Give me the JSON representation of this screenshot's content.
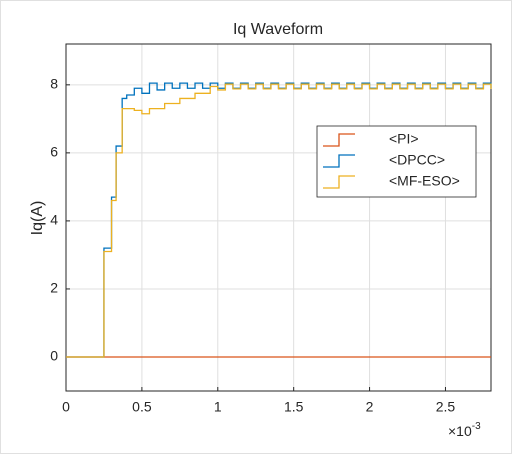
{
  "chart_data": {
    "type": "line",
    "step": true,
    "title": "Iq Waveform",
    "y_label": "Iq(A)",
    "x_multiplier": "×10",
    "x_multiplier_exp": "-3",
    "x": [
      0,
      0.2,
      0.25,
      0.3,
      0.33,
      0.37,
      0.4,
      0.45,
      0.5,
      0.55,
      0.6,
      0.65,
      0.7,
      0.75,
      0.8,
      0.85,
      0.9,
      0.95,
      1.0,
      1.05,
      1.1,
      1.15,
      1.2,
      1.25,
      1.3,
      1.35,
      1.4,
      1.45,
      1.5,
      1.55,
      1.6,
      1.65,
      1.7,
      1.75,
      1.8,
      1.85,
      1.9,
      1.95,
      2.0,
      2.05,
      2.1,
      2.15,
      2.2,
      2.25,
      2.3,
      2.35,
      2.4,
      2.45,
      2.5,
      2.55,
      2.6,
      2.65,
      2.7,
      2.75,
      2.8
    ],
    "series": [
      {
        "name": "<PI>",
        "color": "#d95319",
        "values": [
          0,
          0,
          0,
          0,
          0,
          0,
          0,
          0,
          0,
          0,
          0,
          0,
          0,
          0,
          0,
          0,
          0,
          0,
          0,
          0,
          0,
          0,
          0,
          0,
          0,
          0,
          0,
          0,
          0,
          0,
          0,
          0,
          0,
          0,
          0,
          0,
          0,
          0,
          0,
          0,
          0,
          0,
          0,
          0,
          0,
          0,
          0,
          0,
          0,
          0,
          0,
          0,
          0,
          0,
          0
        ]
      },
      {
        "name": "<DPCC>",
        "color": "#0072bd",
        "values": [
          0,
          0,
          3.2,
          4.7,
          6.2,
          7.6,
          7.7,
          7.9,
          7.75,
          8.05,
          7.85,
          8.05,
          7.9,
          8.05,
          7.9,
          8.05,
          7.9,
          8.05,
          7.9,
          8.05,
          7.9,
          8.05,
          7.9,
          8.05,
          7.9,
          8.05,
          7.9,
          8.05,
          7.9,
          8.05,
          7.9,
          8.05,
          7.9,
          8.05,
          7.9,
          8.05,
          7.9,
          8.05,
          7.9,
          8.05,
          7.9,
          8.05,
          7.9,
          8.05,
          7.9,
          8.05,
          7.9,
          8.05,
          7.9,
          8.05,
          7.9,
          8.05,
          7.9,
          8.05,
          7.9
        ]
      },
      {
        "name": "<MF-ESO>",
        "color": "#edb120",
        "values": [
          0,
          0,
          3.1,
          4.6,
          6.0,
          7.3,
          7.3,
          7.25,
          7.15,
          7.3,
          7.3,
          7.45,
          7.45,
          7.6,
          7.6,
          7.75,
          7.75,
          7.95,
          7.85,
          8.02,
          7.88,
          8.02,
          7.88,
          8.02,
          7.88,
          8.02,
          7.88,
          8.02,
          7.88,
          8.02,
          7.88,
          8.02,
          7.88,
          8.02,
          7.88,
          8.02,
          7.88,
          8.02,
          7.88,
          8.02,
          7.88,
          8.02,
          7.88,
          8.02,
          7.88,
          8.02,
          7.88,
          8.02,
          7.88,
          8.02,
          7.88,
          8.02,
          7.88,
          8.02,
          7.88
        ]
      }
    ],
    "xlim": [
      0,
      2.8
    ],
    "xticks": [
      0,
      0.5,
      1,
      1.5,
      2,
      2.5
    ],
    "ylim": [
      -1,
      9.2
    ],
    "yticks": [
      0,
      2,
      4,
      6,
      8
    ],
    "grid": true,
    "legend": "northeast"
  }
}
